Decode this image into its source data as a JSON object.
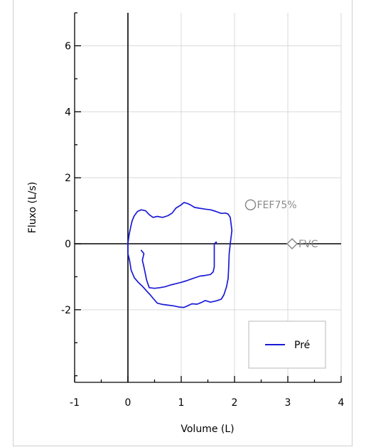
{
  "chart_data": {
    "type": "line",
    "xlabel": "Volume (L)",
    "ylabel": "Fluxo (L/s)",
    "xlim": [
      -1,
      4
    ],
    "ylim": [
      -4.2,
      7.0
    ],
    "x_ticks": [
      -1,
      0,
      1,
      2,
      3,
      4
    ],
    "x_tick_labels": [
      "-1",
      "0",
      "1",
      "2",
      "3",
      "4"
    ],
    "y_ticks": [
      6,
      4,
      2,
      0,
      -2
    ],
    "y_tick_labels": [
      "6",
      "4",
      "2",
      "0",
      "-2"
    ],
    "grid": true,
    "legend": {
      "position": "bottom-right",
      "entries": [
        "Pré"
      ]
    },
    "colors": {
      "series": "#1a1ad6",
      "axes": "#000000",
      "grid": "#d9d9d9",
      "marker": "#8a8a8a"
    },
    "series": [
      {
        "name": "Pré",
        "points": [
          [
            1.65,
            0.05
          ],
          [
            1.65,
            0.02
          ],
          [
            1.66,
            0.05
          ],
          [
            1.62,
            0.0
          ],
          [
            1.62,
            -0.3
          ],
          [
            1.62,
            -0.7
          ],
          [
            1.6,
            -0.85
          ],
          [
            1.55,
            -0.93
          ],
          [
            1.45,
            -0.96
          ],
          [
            1.35,
            -0.98
          ],
          [
            1.22,
            -1.05
          ],
          [
            1.1,
            -1.12
          ],
          [
            1.0,
            -1.17
          ],
          [
            0.88,
            -1.22
          ],
          [
            0.8,
            -1.25
          ],
          [
            0.7,
            -1.3
          ],
          [
            0.6,
            -1.33
          ],
          [
            0.5,
            -1.35
          ],
          [
            0.4,
            -1.33
          ],
          [
            0.35,
            -1.1
          ],
          [
            0.3,
            -0.7
          ],
          [
            0.27,
            -0.5
          ],
          [
            0.3,
            -0.3
          ],
          [
            0.25,
            -0.2
          ]
        ]
      },
      {
        "name": "",
        "points": [
          [
            0.0,
            0.0
          ],
          [
            0.02,
            0.25
          ],
          [
            0.05,
            0.5
          ],
          [
            0.08,
            0.7
          ],
          [
            0.12,
            0.85
          ],
          [
            0.18,
            0.98
          ],
          [
            0.25,
            1.03
          ],
          [
            0.33,
            1.0
          ],
          [
            0.4,
            0.88
          ],
          [
            0.47,
            0.8
          ],
          [
            0.55,
            0.83
          ],
          [
            0.65,
            0.8
          ],
          [
            0.75,
            0.85
          ],
          [
            0.83,
            0.93
          ],
          [
            0.9,
            1.08
          ],
          [
            1.0,
            1.18
          ],
          [
            1.05,
            1.25
          ],
          [
            1.1,
            1.23
          ],
          [
            1.17,
            1.18
          ],
          [
            1.25,
            1.1
          ],
          [
            1.33,
            1.08
          ],
          [
            1.45,
            1.05
          ],
          [
            1.55,
            1.03
          ],
          [
            1.65,
            0.98
          ],
          [
            1.75,
            0.92
          ],
          [
            1.83,
            0.93
          ],
          [
            1.88,
            0.9
          ],
          [
            1.92,
            0.8
          ],
          [
            1.95,
            0.4
          ],
          [
            1.92,
            0.0
          ],
          [
            1.9,
            -0.3
          ],
          [
            1.89,
            -0.7
          ],
          [
            1.88,
            -1.05
          ],
          [
            1.85,
            -1.3
          ],
          [
            1.8,
            -1.55
          ],
          [
            1.75,
            -1.68
          ],
          [
            1.66,
            -1.73
          ],
          [
            1.55,
            -1.77
          ],
          [
            1.45,
            -1.72
          ],
          [
            1.38,
            -1.78
          ],
          [
            1.3,
            -1.83
          ],
          [
            1.2,
            -1.82
          ],
          [
            1.12,
            -1.88
          ],
          [
            1.05,
            -1.93
          ],
          [
            0.96,
            -1.92
          ],
          [
            0.85,
            -1.88
          ],
          [
            0.75,
            -1.86
          ],
          [
            0.65,
            -1.84
          ],
          [
            0.55,
            -1.8
          ],
          [
            0.48,
            -1.67
          ],
          [
            0.42,
            -1.55
          ],
          [
            0.35,
            -1.43
          ],
          [
            0.28,
            -1.3
          ],
          [
            0.2,
            -1.18
          ],
          [
            0.12,
            -1.03
          ],
          [
            0.06,
            -0.8
          ],
          [
            0.03,
            -0.5
          ],
          [
            0.0,
            -0.3
          ],
          [
            0.0,
            0.0
          ]
        ]
      }
    ],
    "markers": [
      {
        "label": "FEF75%",
        "symbol": "circle",
        "x": 2.3,
        "y": 1.18
      },
      {
        "label": "FVC",
        "symbol": "diamond",
        "x": 3.08,
        "y": 0.0
      }
    ]
  }
}
